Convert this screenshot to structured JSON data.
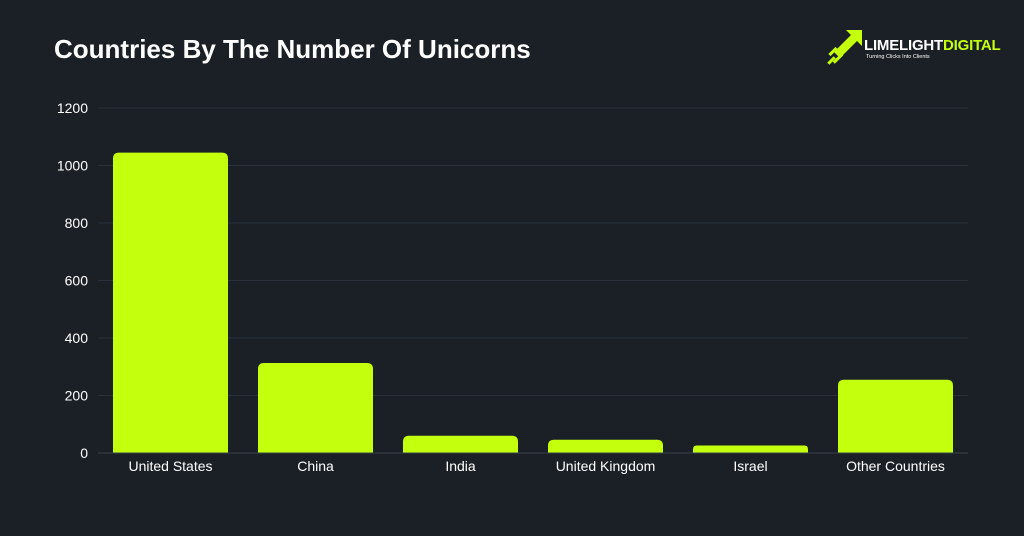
{
  "colors": {
    "background": "#1b2027",
    "bar": "#c4ff0e",
    "grid": "#2a313a",
    "text": "#ffffff",
    "brand_accent": "#c4ff0e"
  },
  "logo": {
    "word1": "LIMELIGHT",
    "word2": "DIGITAL",
    "tagline": "Turning Clicks Into Clients",
    "icon": "rocket-arrow-icon"
  },
  "chart_data": {
    "type": "bar",
    "title": "Countries By The Number Of Unicorns",
    "xlabel": "",
    "ylabel": "",
    "categories": [
      "United States",
      "China",
      "India",
      "United Kingdom",
      "Israel",
      "Other Countries"
    ],
    "values": [
      1045,
      313,
      60,
      46,
      26,
      255
    ],
    "ylim": [
      0,
      1200
    ],
    "yticks": [
      0,
      200,
      400,
      600,
      800,
      1000,
      1200
    ],
    "grid": true,
    "legend": "none"
  }
}
